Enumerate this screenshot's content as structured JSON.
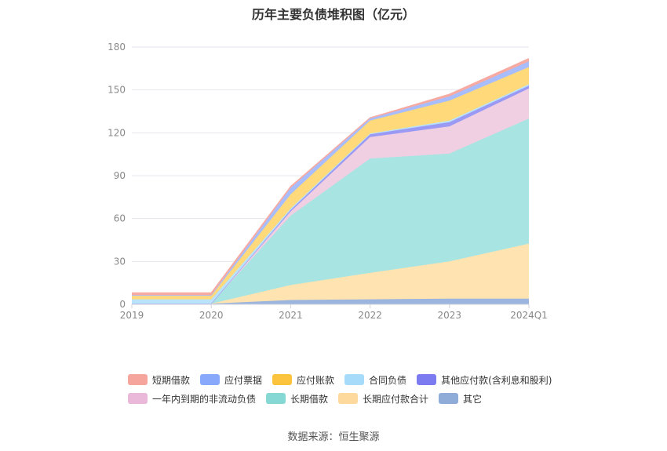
{
  "chart_data": {
    "type": "area",
    "stacked": true,
    "title": "历年主要负债堆积图（亿元）",
    "categories": [
      "2019",
      "2020",
      "2021",
      "2022",
      "2023",
      "2024Q1"
    ],
    "ylim": [
      0,
      180
    ],
    "yticks": [
      0,
      30,
      60,
      90,
      120,
      150,
      180
    ],
    "grid": true,
    "legend_position": "bottom",
    "series": [
      {
        "name": "其它",
        "color": "#9bb5de",
        "values": [
          0.5,
          0.5,
          3,
          3.5,
          4,
          4
        ]
      },
      {
        "name": "长期应付款合计",
        "color": "#ffe3b0",
        "values": [
          0,
          0,
          10.5,
          18.5,
          26,
          38.5
        ]
      },
      {
        "name": "长期借款",
        "color": "#a8e4e2",
        "values": [
          0,
          0,
          48.5,
          80,
          75.5,
          87.5
        ]
      },
      {
        "name": "一年内到期的非流动负债",
        "color": "#f0cfe3",
        "values": [
          0,
          0,
          3,
          15,
          19,
          21
        ]
      },
      {
        "name": "其他应付款(含利息和股利)",
        "color": "#9a9af5",
        "values": [
          0,
          0,
          1,
          2,
          3,
          2
        ]
      },
      {
        "name": "合同负债",
        "color": "#b9e2fb",
        "values": [
          3,
          3,
          1,
          0.5,
          1,
          1
        ]
      },
      {
        "name": "应付账款",
        "color": "#ffd97a",
        "values": [
          2.5,
          2.5,
          10,
          9,
          14,
          12
        ]
      },
      {
        "name": "应付票据",
        "color": "#a8bdfd",
        "values": [
          0.5,
          0.5,
          4.5,
          1.5,
          3,
          4
        ]
      },
      {
        "name": "短期借款",
        "color": "#f7aaa2",
        "values": [
          1.5,
          1.5,
          1,
          0.5,
          1.5,
          2
        ]
      }
    ]
  },
  "legend": {
    "rows": [
      [
        {
          "name": "短期借款",
          "color": "#f6a59c"
        },
        {
          "name": "应付票据",
          "color": "#88a8fb"
        },
        {
          "name": "应付账款",
          "color": "#fcc43d"
        },
        {
          "name": "合同负债",
          "color": "#a6dcf9"
        },
        {
          "name": "其他应付款(含利息和股利)",
          "color": "#7c7cf0"
        }
      ],
      [
        {
          "name": "一年内到期的非流动负债",
          "color": "#eab8d8"
        },
        {
          "name": "长期借款",
          "color": "#86d8d5"
        },
        {
          "name": "长期应付款合计",
          "color": "#fdd99e"
        },
        {
          "name": "其它",
          "color": "#8fabd8"
        }
      ]
    ]
  },
  "source": "数据来源：恒生聚源"
}
